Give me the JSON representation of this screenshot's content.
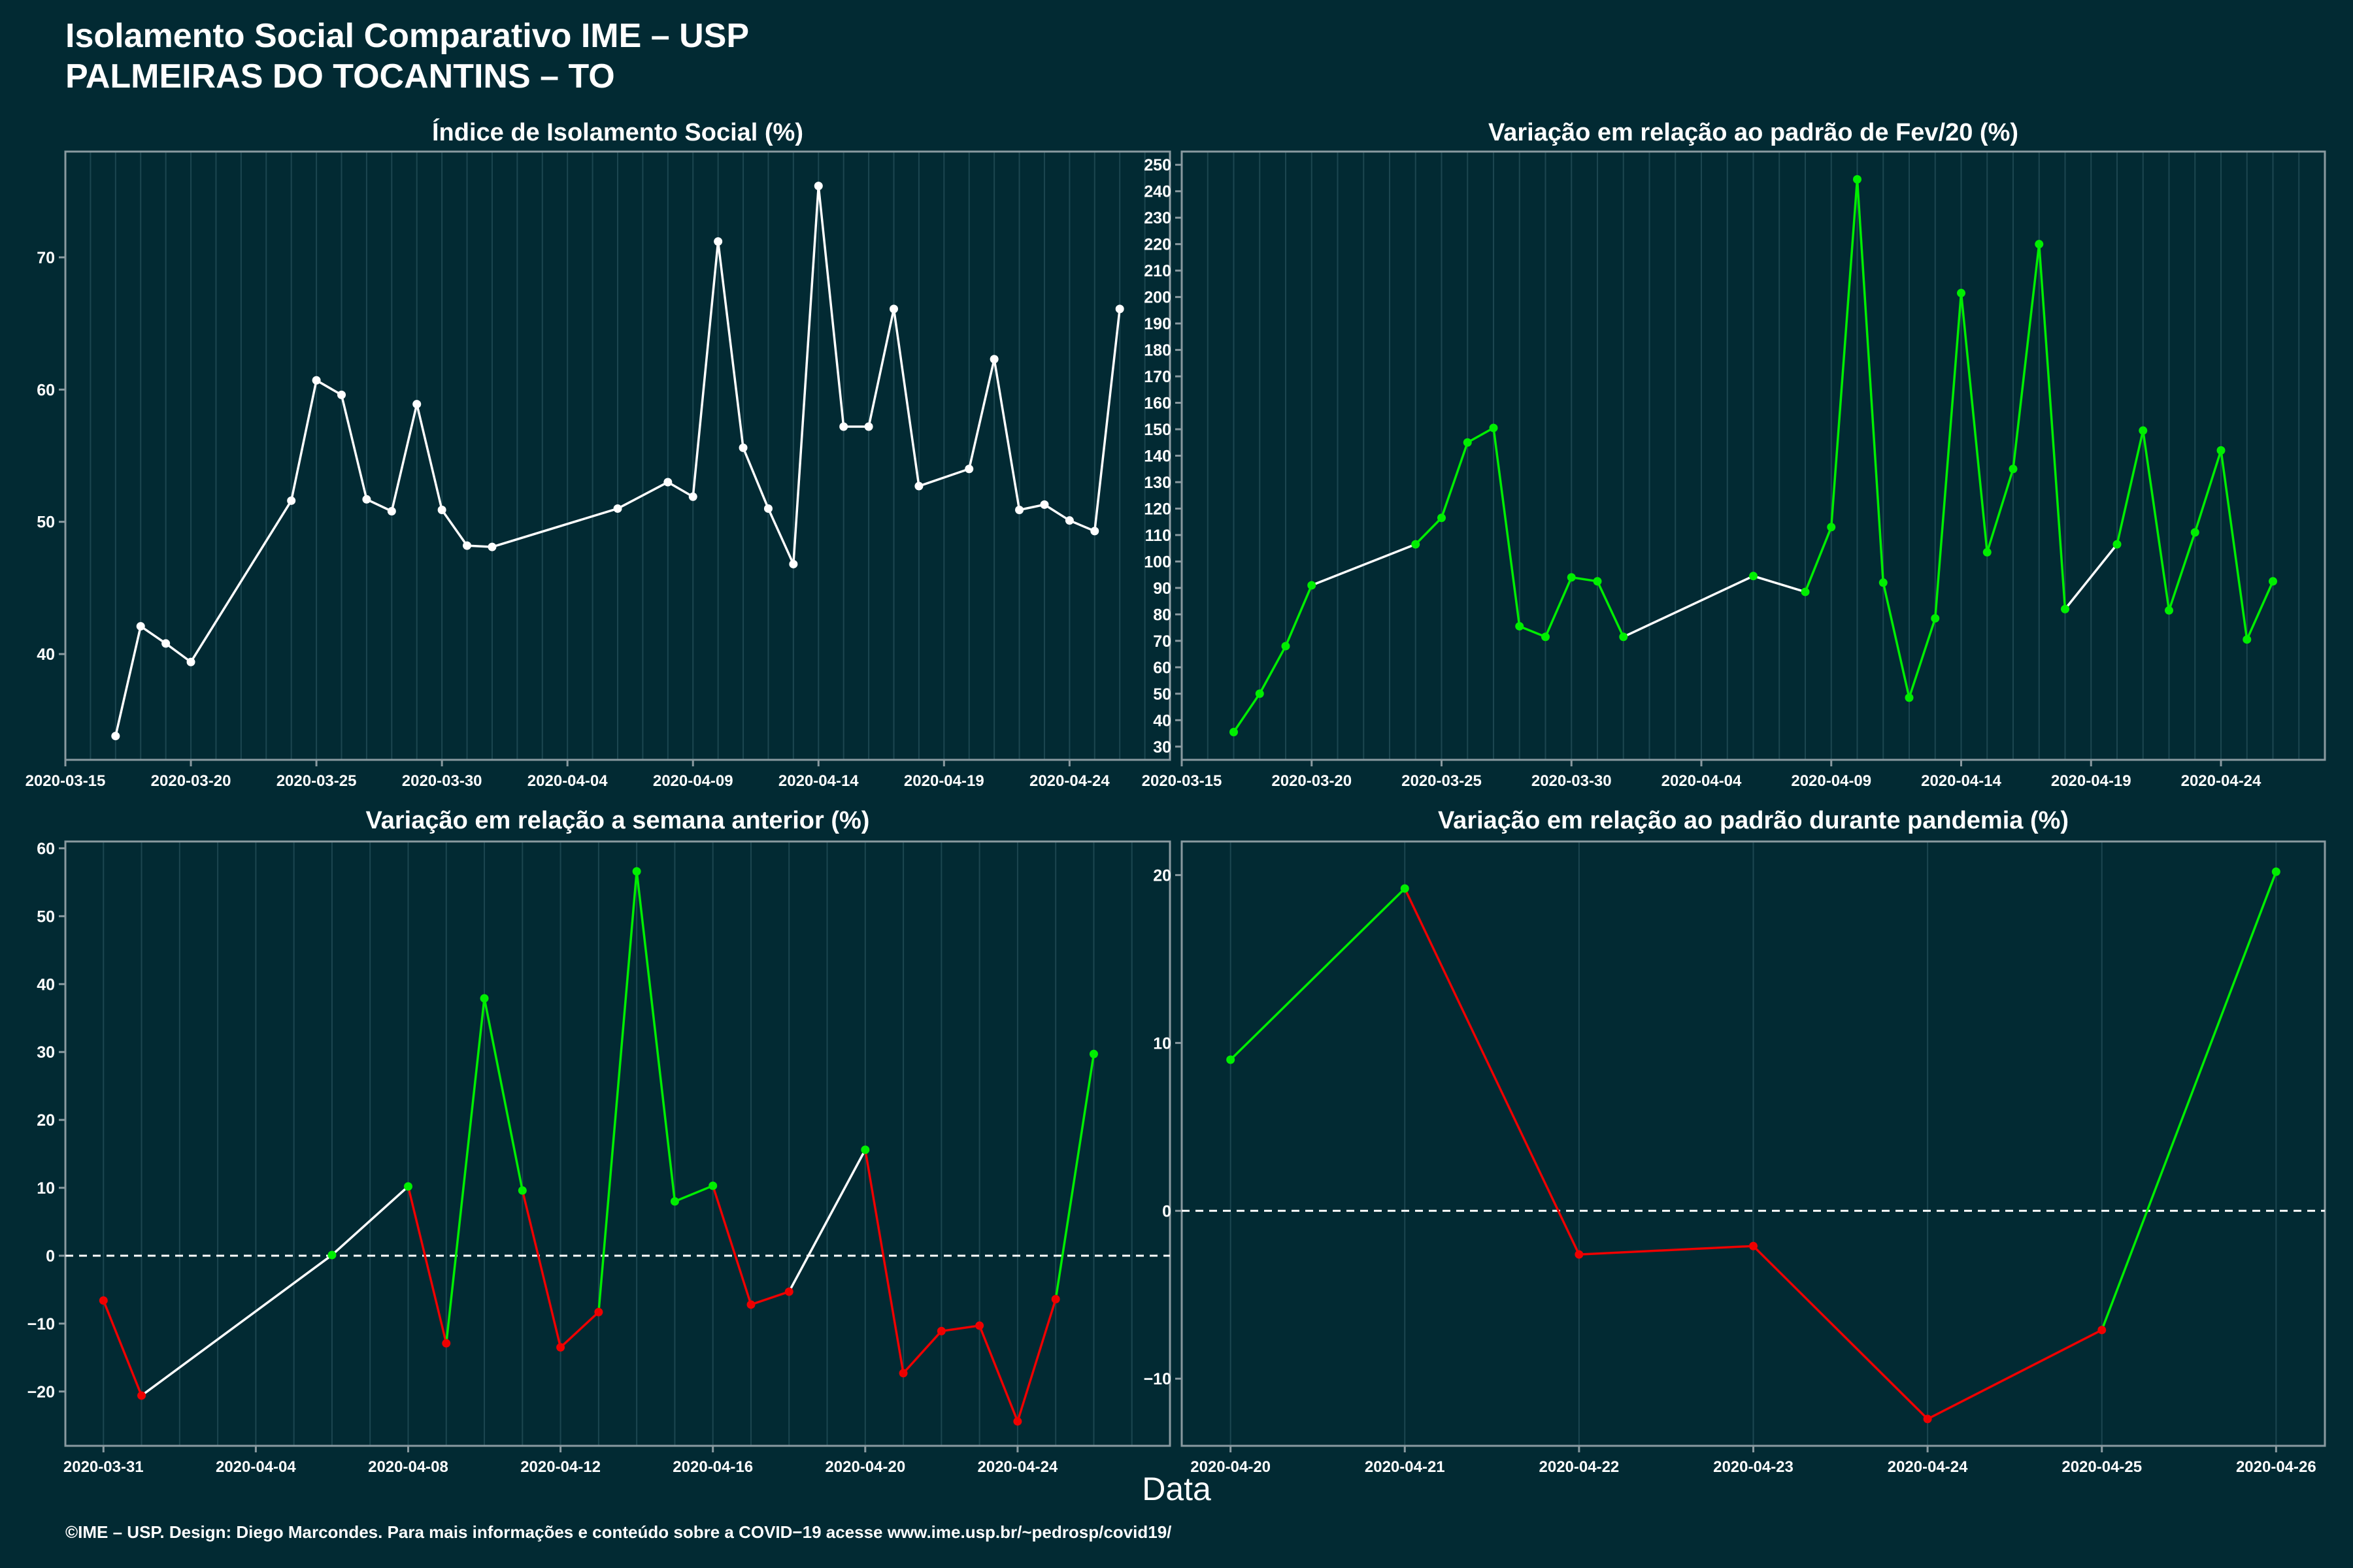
{
  "header": {
    "title_line1": "Isolamento Social Comparativo IME – USP",
    "title_line2": "PALMEIRAS DO TOCANTINS – TO"
  },
  "x_axis_title": "Data",
  "footer": "©IME – USP. Design: Diego Marcondes. Para mais informações e conteúdo sobre a COVID−19 acesse www.ime.usp.br/~pedrosp/covid19/",
  "colors": {
    "background": "#022a33",
    "white": "#ffffff",
    "green": "#00ee00",
    "red": "#ee0000",
    "grid": "#1c4650",
    "axis": "#8a9aa0"
  },
  "chart_data": [
    {
      "type": "line",
      "title": "Índice de Isolamento Social (%)",
      "xlim": [
        "2020-03-15",
        "2020-04-28"
      ],
      "ylim": [
        32,
        78
      ],
      "x_ticks": [
        "2020-03-15",
        "2020-03-20",
        "2020-03-25",
        "2020-03-30",
        "2020-04-04",
        "2020-04-09",
        "2020-04-14",
        "2020-04-19",
        "2020-04-24"
      ],
      "y_ticks": [
        40,
        50,
        60,
        70
      ],
      "segment_colors": false,
      "points": [
        [
          "2020-03-17",
          33.8
        ],
        [
          "2020-03-18",
          42.1
        ],
        [
          "2020-03-19",
          40.8
        ],
        [
          "2020-03-20",
          39.4
        ],
        [
          "2020-03-24",
          51.6
        ],
        [
          "2020-03-25",
          60.7
        ],
        [
          "2020-03-26",
          59.6
        ],
        [
          "2020-03-27",
          51.7
        ],
        [
          "2020-03-28",
          50.8
        ],
        [
          "2020-03-29",
          58.9
        ],
        [
          "2020-03-30",
          50.9
        ],
        [
          "2020-03-31",
          48.2
        ],
        [
          "2020-04-01",
          48.1
        ],
        [
          "2020-04-06",
          51.0
        ],
        [
          "2020-04-08",
          53.0
        ],
        [
          "2020-04-09",
          51.9
        ],
        [
          "2020-04-10",
          71.2
        ],
        [
          "2020-04-11",
          55.6
        ],
        [
          "2020-04-12",
          51.0
        ],
        [
          "2020-04-13",
          46.8
        ],
        [
          "2020-04-14",
          75.4
        ],
        [
          "2020-04-15",
          57.2
        ],
        [
          "2020-04-16",
          57.2
        ],
        [
          "2020-04-17",
          66.1
        ],
        [
          "2020-04-18",
          52.7
        ],
        [
          "2020-04-20",
          54.0
        ],
        [
          "2020-04-21",
          62.3
        ],
        [
          "2020-04-22",
          50.9
        ],
        [
          "2020-04-23",
          51.3
        ],
        [
          "2020-04-24",
          50.1
        ],
        [
          "2020-04-25",
          49.3
        ],
        [
          "2020-04-26",
          66.1
        ]
      ]
    },
    {
      "type": "line",
      "title": "Variação em relação ao padrão de Fev/20 (%)",
      "xlim": [
        "2020-03-15",
        "2020-04-28"
      ],
      "ylim": [
        25,
        255
      ],
      "x_ticks": [
        "2020-03-15",
        "2020-03-20",
        "2020-03-25",
        "2020-03-30",
        "2020-04-04",
        "2020-04-09",
        "2020-04-14",
        "2020-04-19",
        "2020-04-24"
      ],
      "y_ticks": [
        30,
        40,
        50,
        60,
        70,
        80,
        90,
        100,
        110,
        120,
        130,
        140,
        150,
        160,
        170,
        180,
        190,
        200,
        210,
        220,
        230,
        240,
        250
      ],
      "segment_colors": true,
      "points": [
        [
          "2020-03-17",
          35.5,
          "green"
        ],
        [
          "2020-03-18",
          50.0,
          "green"
        ],
        [
          "2020-03-19",
          68.0,
          "green"
        ],
        [
          "2020-03-20",
          91.0,
          "green"
        ],
        [
          "2020-03-24",
          106.5,
          "green"
        ],
        [
          "2020-03-25",
          116.5,
          "green"
        ],
        [
          "2020-03-26",
          145.0,
          "green"
        ],
        [
          "2020-03-27",
          150.5,
          "green"
        ],
        [
          "2020-03-28",
          75.5,
          "green"
        ],
        [
          "2020-03-29",
          71.5,
          "green"
        ],
        [
          "2020-03-30",
          94.0,
          "green"
        ],
        [
          "2020-03-31",
          92.5,
          "green"
        ],
        [
          "2020-04-01",
          71.5,
          "green"
        ],
        [
          "2020-04-06",
          94.5,
          "green"
        ],
        [
          "2020-04-08",
          88.5,
          "green"
        ],
        [
          "2020-04-09",
          113.0,
          "green"
        ],
        [
          "2020-04-10",
          244.5,
          "green"
        ],
        [
          "2020-04-11",
          92.0,
          "green"
        ],
        [
          "2020-04-12",
          48.5,
          "green"
        ],
        [
          "2020-04-13",
          78.5,
          "green"
        ],
        [
          "2020-04-14",
          201.5,
          "green"
        ],
        [
          "2020-04-15",
          103.5,
          "green"
        ],
        [
          "2020-04-16",
          135.0,
          "green"
        ],
        [
          "2020-04-17",
          220.0,
          "green"
        ],
        [
          "2020-04-18",
          82.0,
          "green"
        ],
        [
          "2020-04-20",
          106.5,
          "green"
        ],
        [
          "2020-04-21",
          149.5,
          "green"
        ],
        [
          "2020-04-22",
          81.5,
          "green"
        ],
        [
          "2020-04-23",
          111.0,
          "green"
        ],
        [
          "2020-04-24",
          142.0,
          "green"
        ],
        [
          "2020-04-25",
          70.5,
          "green"
        ],
        [
          "2020-04-26",
          92.5,
          "green"
        ]
      ],
      "segments": [
        "green",
        "green",
        "green",
        "white",
        "green",
        "green",
        "green",
        "green",
        "green",
        "green",
        "green",
        "green",
        "white",
        "white",
        "green",
        "green",
        "green",
        "green",
        "green",
        "green",
        "green",
        "green",
        "green",
        "green",
        "white",
        "green",
        "green",
        "green",
        "green",
        "green",
        "green"
      ]
    },
    {
      "type": "line",
      "title": "Variação em relação a semana anterior (%)",
      "xlim": [
        "2020-03-30",
        "2020-04-28"
      ],
      "ylim": [
        -28,
        61
      ],
      "x_ticks": [
        "2020-03-31",
        "2020-04-04",
        "2020-04-08",
        "2020-04-12",
        "2020-04-16",
        "2020-04-20",
        "2020-04-24"
      ],
      "y_ticks": [
        -20,
        -10,
        0,
        10,
        20,
        30,
        40,
        50,
        60
      ],
      "zero_line": true,
      "segment_colors": true,
      "points": [
        [
          "2020-03-31",
          -6.6,
          "red"
        ],
        [
          "2020-04-01",
          -20.6,
          "red"
        ],
        [
          "2020-04-06",
          0.1,
          "green"
        ],
        [
          "2020-04-08",
          10.2,
          "green"
        ],
        [
          "2020-04-09",
          -12.9,
          "red"
        ],
        [
          "2020-04-10",
          37.9,
          "green"
        ],
        [
          "2020-04-11",
          9.6,
          "green"
        ],
        [
          "2020-04-12",
          -13.5,
          "red"
        ],
        [
          "2020-04-13",
          -8.3,
          "red"
        ],
        [
          "2020-04-14",
          56.6,
          "green"
        ],
        [
          "2020-04-15",
          8.0,
          "green"
        ],
        [
          "2020-04-16",
          10.3,
          "green"
        ],
        [
          "2020-04-17",
          -7.2,
          "red"
        ],
        [
          "2020-04-18",
          -5.3,
          "red"
        ],
        [
          "2020-04-20",
          15.6,
          "green"
        ],
        [
          "2020-04-21",
          -17.3,
          "red"
        ],
        [
          "2020-04-22",
          -11.1,
          "red"
        ],
        [
          "2020-04-23",
          -10.3,
          "red"
        ],
        [
          "2020-04-24",
          -24.4,
          "red"
        ],
        [
          "2020-04-25",
          -6.4,
          "red"
        ],
        [
          "2020-04-26",
          29.7,
          "green"
        ]
      ],
      "segments": [
        "red",
        "white",
        "white",
        "red",
        "green",
        "green",
        "red",
        "red",
        "green",
        "green",
        "green",
        "red",
        "red",
        "white",
        "red",
        "red",
        "red",
        "red",
        "red",
        "green"
      ]
    },
    {
      "type": "line",
      "title": "Variação em relação ao padrão durante pandemia (%)",
      "xlim": [
        "2020-04-19.72",
        "2020-04-26.28"
      ],
      "ylim": [
        -14,
        22
      ],
      "x_ticks": [
        "2020-04-20",
        "2020-04-21",
        "2020-04-22",
        "2020-04-23",
        "2020-04-24",
        "2020-04-25",
        "2020-04-26"
      ],
      "y_ticks": [
        -10,
        0,
        10,
        20
      ],
      "zero_line": true,
      "segment_colors": true,
      "points": [
        [
          "2020-04-20",
          9.0,
          "green"
        ],
        [
          "2020-04-21",
          19.2,
          "green"
        ],
        [
          "2020-04-22",
          -2.6,
          "red"
        ],
        [
          "2020-04-23",
          -2.1,
          "red"
        ],
        [
          "2020-04-24",
          -12.4,
          "red"
        ],
        [
          "2020-04-25",
          -7.1,
          "red"
        ],
        [
          "2020-04-26",
          20.2,
          "green"
        ]
      ],
      "segments": [
        "green",
        "red",
        "red",
        "red",
        "red",
        "green"
      ]
    }
  ]
}
